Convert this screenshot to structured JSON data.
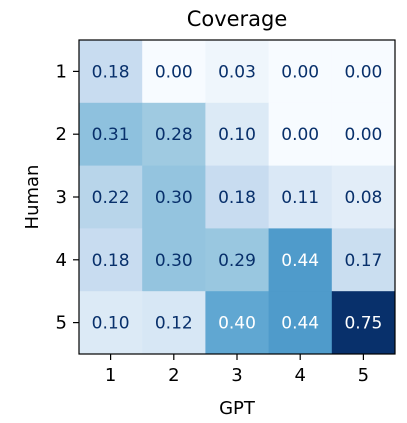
{
  "chart_data": {
    "type": "heatmap",
    "title": "Coverage",
    "xlabel": "GPT",
    "ylabel": "Human",
    "x_categories": [
      "1",
      "2",
      "3",
      "4",
      "5"
    ],
    "y_categories": [
      "1",
      "2",
      "3",
      "4",
      "5"
    ],
    "values": [
      [
        0.18,
        0.0,
        0.03,
        0.0,
        0.0
      ],
      [
        0.31,
        0.28,
        0.1,
        0.0,
        0.0
      ],
      [
        0.22,
        0.3,
        0.18,
        0.11,
        0.08
      ],
      [
        0.18,
        0.3,
        0.29,
        0.44,
        0.17
      ],
      [
        0.1,
        0.12,
        0.4,
        0.44,
        0.75
      ]
    ],
    "colormap": "Blues",
    "color_range": [
      0,
      0.75
    ],
    "grid": false,
    "legend": "none"
  }
}
